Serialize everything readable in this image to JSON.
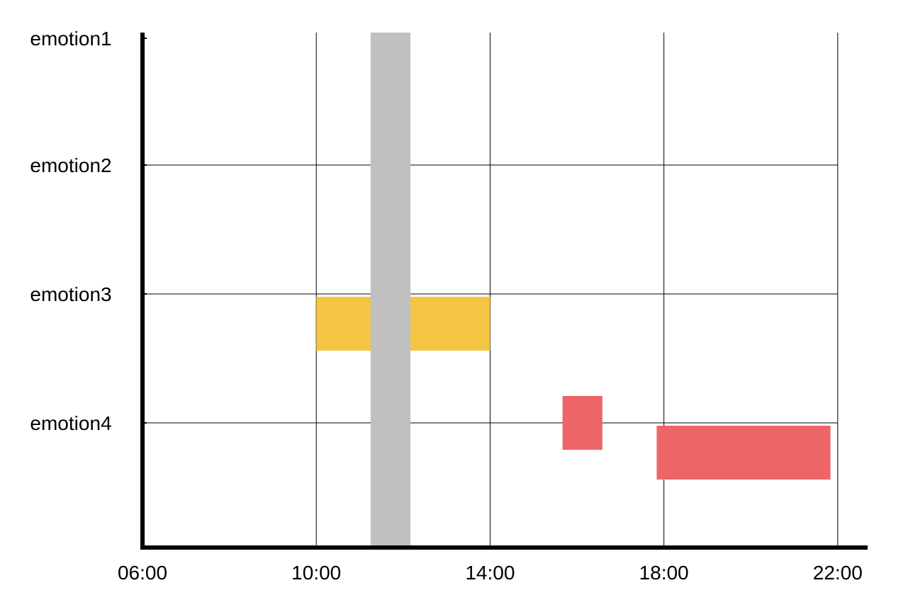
{
  "chart_data": {
    "type": "timeline",
    "title": "",
    "xlabel": "",
    "ylabel": "",
    "x_ticks": [
      "06:00",
      "10:00",
      "14:00",
      "18:00",
      "22:00"
    ],
    "x_range": [
      "06:00",
      "22:30"
    ],
    "categories": [
      "emotion1",
      "emotion2",
      "emotion3",
      "emotion4"
    ],
    "grid": true,
    "colors": {
      "highlight": "#c0c0c0",
      "emotion3": "#f4c542",
      "emotion4": "#ee6568"
    },
    "highlight_band": {
      "start": "11:15",
      "end": "12:10"
    },
    "segments": [
      {
        "category": "emotion3",
        "start": "10:00",
        "end": "14:00",
        "level": "below"
      },
      {
        "category": "emotion4",
        "start": "15:40",
        "end": "16:35",
        "level": "center"
      },
      {
        "category": "emotion4",
        "start": "17:50",
        "end": "21:50",
        "level": "below"
      }
    ]
  }
}
